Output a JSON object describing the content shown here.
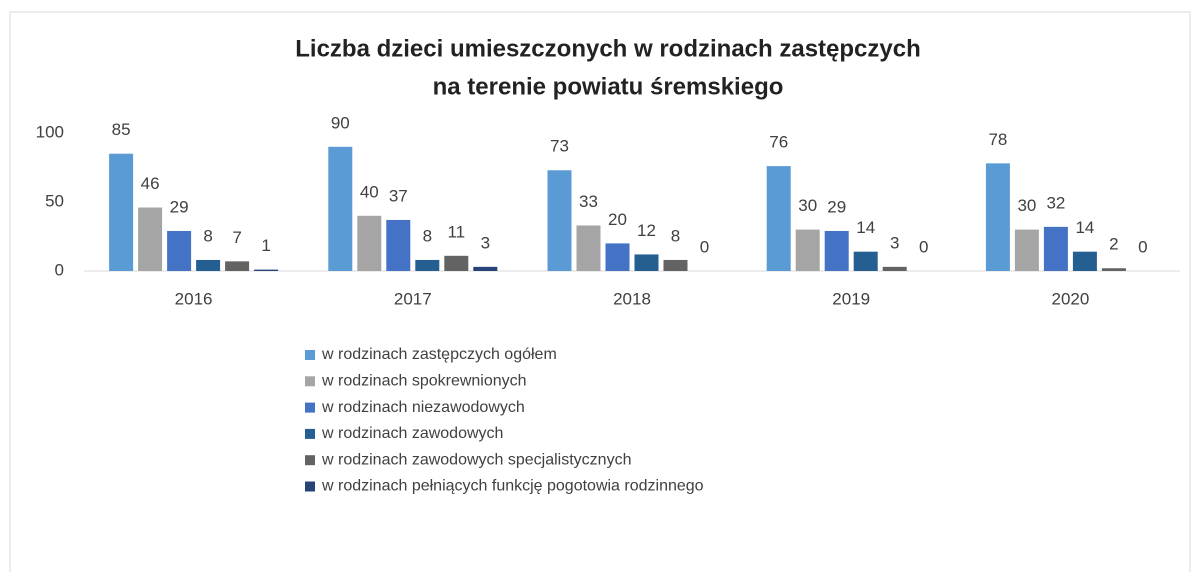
{
  "chart_data": {
    "type": "bar",
    "title": [
      "Liczba dzieci umieszczonych w rodzinach zastępczych",
      "na terenie powiatu śremskiego"
    ],
    "categories": [
      "2016",
      "2017",
      "2018",
      "2019",
      "2020"
    ],
    "series": [
      {
        "name": "w rodzinach zastępczych ogółem",
        "color": "#5b9bd5",
        "values": [
          85,
          90,
          73,
          76,
          78
        ]
      },
      {
        "name": "w rodzinach spokrewnionych",
        "color": "#a5a5a5",
        "values": [
          46,
          40,
          33,
          30,
          30
        ]
      },
      {
        "name": "w rodzinach niezawodowych",
        "color": "#4472c4",
        "values": [
          29,
          37,
          20,
          29,
          32
        ]
      },
      {
        "name": "w rodzinach zawodowych",
        "color": "#255e91",
        "values": [
          8,
          8,
          12,
          14,
          14
        ]
      },
      {
        "name": "w rodzinach zawodowych specjalistycznych",
        "color": "#636363",
        "values": [
          7,
          11,
          8,
          3,
          2
        ]
      },
      {
        "name": "w rodzinach pełniących funkcję pogotowia rodzinnego",
        "color": "#264478",
        "values": [
          1,
          3,
          0,
          0,
          0
        ]
      }
    ],
    "ylim": [
      0,
      100
    ],
    "yticks": [
      0,
      50,
      100
    ],
    "grid": false,
    "legend": "bottom"
  }
}
